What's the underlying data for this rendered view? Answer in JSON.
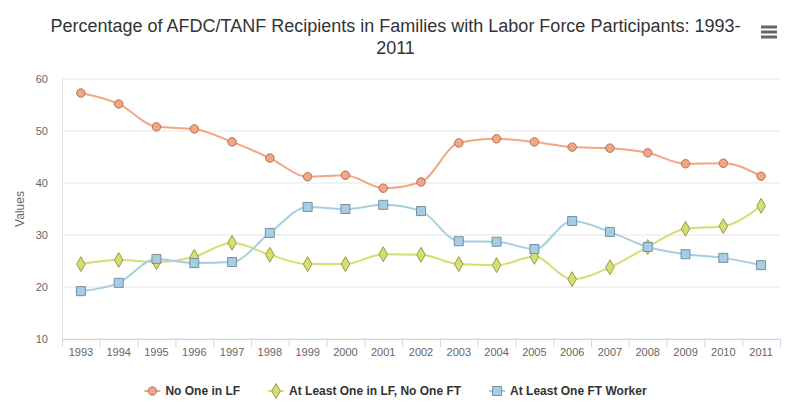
{
  "chart_data": {
    "type": "line",
    "title": "Percentage of AFDC/TANF Recipients in Families with Labor Force Participants: 1993-2011",
    "y_label": "Values",
    "categories": [
      "1993",
      "1994",
      "1995",
      "1996",
      "1997",
      "1998",
      "1999",
      "2000",
      "2001",
      "2002",
      "2003",
      "2004",
      "2005",
      "2006",
      "2007",
      "2008",
      "2009",
      "2010",
      "2011"
    ],
    "series": [
      {
        "name": "No One in LF",
        "color": "#f4a582",
        "marker": "circle",
        "values": [
          57.3,
          55.2,
          50.8,
          50.4,
          47.9,
          44.8,
          41.2,
          41.5,
          39.0,
          40.2,
          47.7,
          48.5,
          47.9,
          46.9,
          46.7,
          45.8,
          43.7,
          43.8,
          41.3
        ]
      },
      {
        "name": "At Least One in LF, No One FT",
        "color": "#d6de6f",
        "marker": "diamond",
        "values": [
          24.4,
          25.2,
          24.8,
          25.8,
          28.5,
          26.2,
          24.4,
          24.4,
          26.3,
          26.2,
          24.4,
          24.2,
          25.8,
          21.5,
          23.8,
          27.7,
          31.2,
          31.7,
          35.6
        ]
      },
      {
        "name": "At Least One FT Worker",
        "color": "#a6cee3",
        "marker": "square",
        "values": [
          19.2,
          20.8,
          25.4,
          24.6,
          24.8,
          30.4,
          35.4,
          35.0,
          35.8,
          34.6,
          28.8,
          28.7,
          27.3,
          32.7,
          30.6,
          27.7,
          26.3,
          25.6,
          24.2
        ]
      }
    ],
    "ylim": [
      10,
      60
    ],
    "yticks": [
      10,
      20,
      30,
      40,
      50,
      60
    ],
    "grid": true,
    "legend": "bottom"
  }
}
